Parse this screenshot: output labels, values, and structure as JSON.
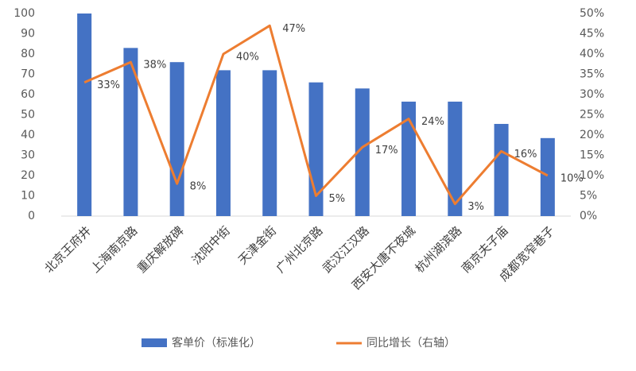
{
  "chart_data": {
    "type": "bar-line",
    "categories": [
      "北京王府井",
      "上海南京路",
      "重庆解放碑",
      "沈阳中街",
      "天津金街",
      "广州北京路",
      "武汉江汉路",
      "西安大唐不夜城",
      "杭州湖滨路",
      "南京夫子庙",
      "成都宽窄巷子"
    ],
    "series": [
      {
        "name": "客单价（标准化）",
        "type": "bar",
        "color": "#4472c4",
        "values": [
          100,
          83,
          76,
          72,
          72,
          66,
          63,
          56.5,
          56.5,
          45.5,
          38.5
        ]
      },
      {
        "name": "同比增长（右轴）",
        "type": "line",
        "axis": "y2",
        "color": "#ed7d31",
        "values": [
          33,
          38,
          8,
          40,
          47,
          5,
          17,
          24,
          3,
          16,
          10
        ],
        "value_labels": [
          "33%",
          "38%",
          "8%",
          "40%",
          "47%",
          "5%",
          "17%",
          "24%",
          "3%",
          "16%",
          "10%"
        ]
      }
    ],
    "ylim": [
      0,
      100
    ],
    "yticks": [
      0,
      10,
      20,
      30,
      40,
      50,
      60,
      70,
      80,
      90,
      100
    ],
    "y2lim": [
      0,
      50
    ],
    "y2ticks": [
      {
        "value": 0,
        "label": "0%"
      },
      {
        "value": 5,
        "label": "5%"
      },
      {
        "value": 10,
        "label": "10%"
      },
      {
        "value": 15,
        "label": "15%"
      },
      {
        "value": 20,
        "label": "20%"
      },
      {
        "value": 25,
        "label": "25%"
      },
      {
        "value": 30,
        "label": "30%"
      },
      {
        "value": 35,
        "label": "35%"
      },
      {
        "value": 40,
        "label": "40%"
      },
      {
        "value": 45,
        "label": "45%"
      },
      {
        "value": 50,
        "label": "50%"
      }
    ],
    "legend": "bottom"
  }
}
